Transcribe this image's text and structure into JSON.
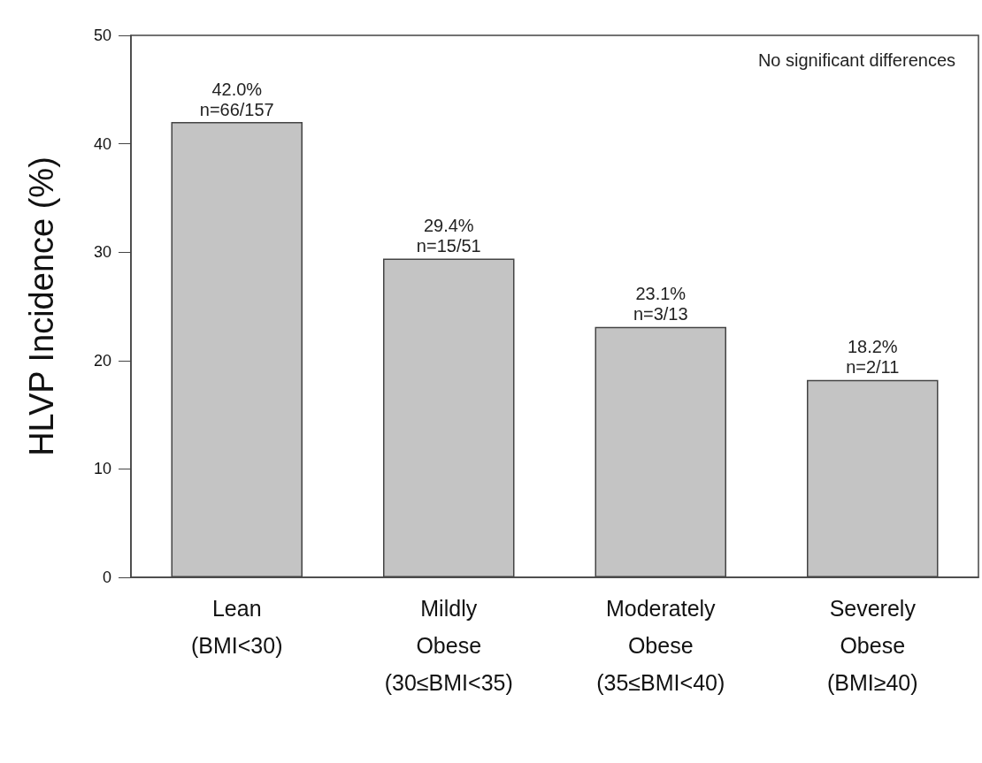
{
  "chart_data": {
    "type": "bar",
    "categories": [
      "Lean\n(BMI<30)",
      "Mildly\nObese\n(30≤BMI<35)",
      "Moderately\nObese\n(35≤BMI<40)",
      "Severely\nObese\n(BMI≥40)"
    ],
    "values": [
      42.0,
      29.4,
      23.1,
      18.2
    ],
    "value_labels": [
      "42.0%\nn=66/157",
      "29.4%\nn=15/51",
      "23.1%\nn=3/13",
      "18.2%\nn=2/11"
    ],
    "color": "#c4c4c4",
    "ylabel": "HLVP Incidence (%)",
    "ylim": [
      0,
      50
    ],
    "yticks": [
      0,
      10,
      20,
      30,
      40,
      50
    ],
    "annotations": [
      "No significant differences"
    ],
    "grid": false
  }
}
